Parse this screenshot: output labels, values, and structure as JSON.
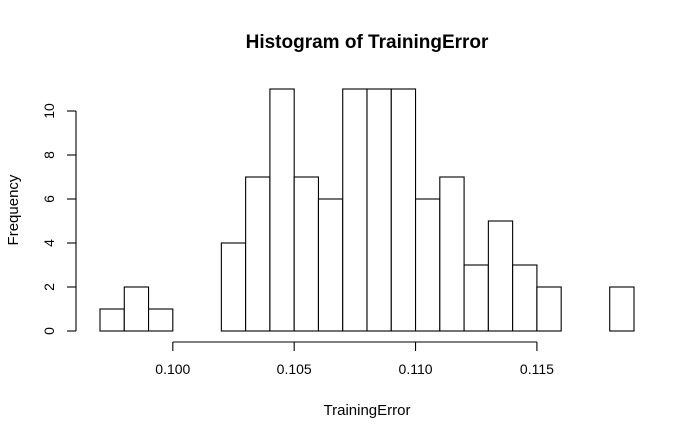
{
  "chart_data": {
    "type": "bar",
    "title": "Histogram of TrainingError",
    "xlabel": "TrainingError",
    "ylabel": "Frequency",
    "bin_width": 0.001,
    "bin_starts": [
      0.097,
      0.098,
      0.099,
      0.1,
      0.101,
      0.102,
      0.103,
      0.104,
      0.105,
      0.106,
      0.107,
      0.108,
      0.109,
      0.11,
      0.111,
      0.112,
      0.113,
      0.114,
      0.115,
      0.116,
      0.117,
      0.118
    ],
    "values": [
      1,
      2,
      1,
      0,
      0,
      4,
      7,
      11,
      7,
      6,
      11,
      11,
      11,
      6,
      7,
      3,
      5,
      3,
      2,
      0,
      0,
      2
    ],
    "xlim": [
      0.097,
      0.119
    ],
    "ylim": [
      0,
      11
    ],
    "x_ticks": [
      0.1,
      0.105,
      0.11,
      0.115
    ],
    "x_tick_labels": [
      "0.100",
      "0.105",
      "0.110",
      "0.115"
    ],
    "y_ticks": [
      0,
      2,
      4,
      6,
      8,
      10
    ],
    "y_tick_labels": [
      "0",
      "2",
      "4",
      "6",
      "8",
      "10"
    ],
    "grid": false,
    "legend": "none"
  }
}
